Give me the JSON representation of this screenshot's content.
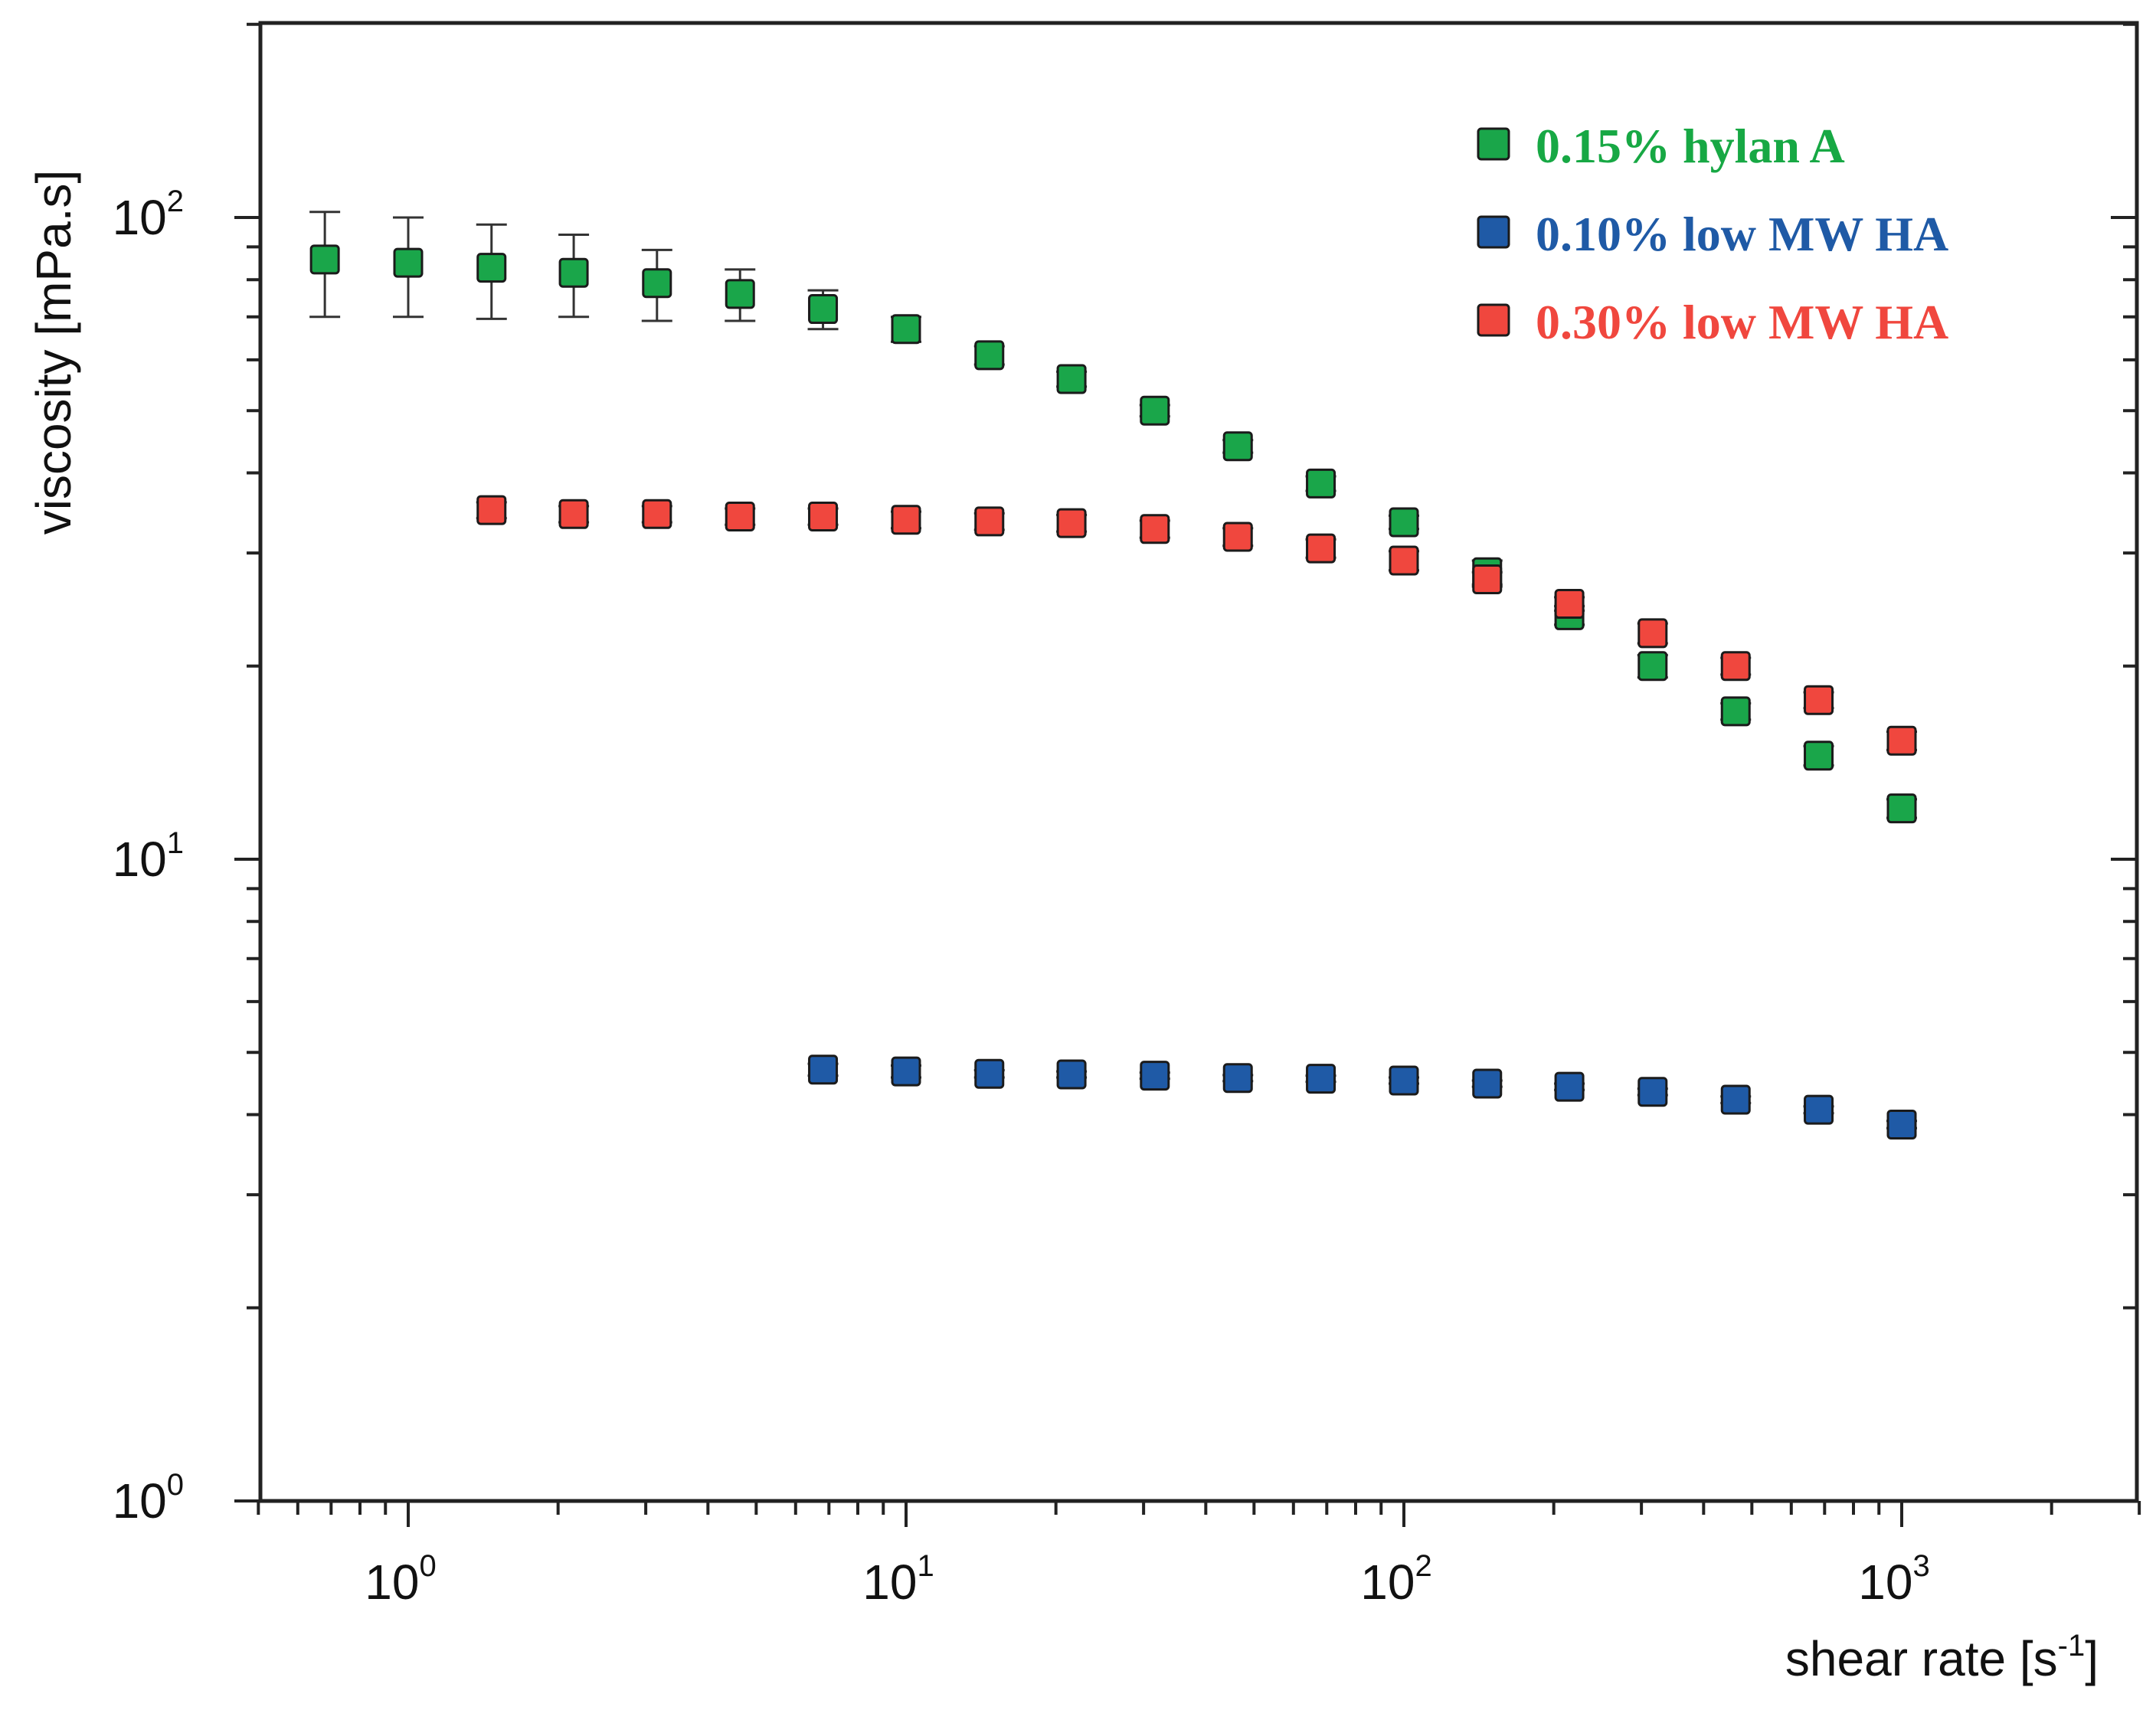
{
  "chart_data": {
    "type": "scatter",
    "x_scale": "log",
    "y_scale": "log",
    "xlabel": "shear rate [s",
    "xlabel_superscript": "-1",
    "xlabel_suffix": "]",
    "ylabel": "viscosity [mPa.s]",
    "xlim": [
      0.5,
      3500
    ],
    "ylim": [
      1,
      200
    ],
    "x_ticks": [
      {
        "value": 1,
        "base": "10",
        "exp": "0"
      },
      {
        "value": 10,
        "base": "10",
        "exp": "1"
      },
      {
        "value": 100,
        "base": "10",
        "exp": "2"
      },
      {
        "value": 1000,
        "base": "10",
        "exp": "3"
      }
    ],
    "y_ticks": [
      {
        "value": 1,
        "base": "10",
        "exp": "0"
      },
      {
        "value": 10,
        "base": "10",
        "exp": "1"
      },
      {
        "value": 100,
        "base": "10",
        "exp": "2"
      }
    ],
    "legend_position": "top-right",
    "series": [
      {
        "name": "0.15% hylan A",
        "color": "#1aa64a",
        "text_color": "#17a844",
        "points": [
          {
            "x": 0.68,
            "y": 86,
            "err": 16
          },
          {
            "x": 1.0,
            "y": 85,
            "err": 15
          },
          {
            "x": 1.47,
            "y": 83.5,
            "err": 14
          },
          {
            "x": 2.15,
            "y": 82,
            "err": 12
          },
          {
            "x": 3.16,
            "y": 79,
            "err": 10
          },
          {
            "x": 4.64,
            "y": 76,
            "err": 7
          },
          {
            "x": 6.81,
            "y": 72,
            "err": 5
          },
          {
            "x": 10.0,
            "y": 67,
            "err": 3
          },
          {
            "x": 14.7,
            "y": 61,
            "err": 2
          },
          {
            "x": 21.5,
            "y": 56,
            "err": 1.5
          },
          {
            "x": 31.6,
            "y": 50,
            "err": 1
          },
          {
            "x": 46.4,
            "y": 44,
            "err": 1
          },
          {
            "x": 68.1,
            "y": 38.5,
            "err": 1
          },
          {
            "x": 100,
            "y": 33.5,
            "err": 0.8
          },
          {
            "x": 147,
            "y": 28,
            "err": 1.2
          },
          {
            "x": 215,
            "y": 24,
            "err": 0.8
          },
          {
            "x": 316,
            "y": 20,
            "err": 0.8
          },
          {
            "x": 464,
            "y": 17,
            "err": 0.5
          },
          {
            "x": 681,
            "y": 14.5,
            "err": 0.5
          },
          {
            "x": 1000,
            "y": 12,
            "err": 0.4
          }
        ]
      },
      {
        "name": "0.10% low MW HA",
        "color": "#1f5aa6",
        "text_color": "#1f5aa6",
        "points": [
          {
            "x": 6.81,
            "y": 4.7,
            "err": 0.1
          },
          {
            "x": 10.0,
            "y": 4.67,
            "err": 0.1
          },
          {
            "x": 14.7,
            "y": 4.63,
            "err": 0.06
          },
          {
            "x": 21.5,
            "y": 4.62,
            "err": 0.05
          },
          {
            "x": 31.6,
            "y": 4.6,
            "err": 0.05
          },
          {
            "x": 46.4,
            "y": 4.56,
            "err": 0.05
          },
          {
            "x": 68.1,
            "y": 4.55,
            "err": 0.05
          },
          {
            "x": 100,
            "y": 4.52,
            "err": 0.05
          },
          {
            "x": 147,
            "y": 4.47,
            "err": 0.05
          },
          {
            "x": 215,
            "y": 4.42,
            "err": 0.05
          },
          {
            "x": 316,
            "y": 4.34,
            "err": 0.05
          },
          {
            "x": 464,
            "y": 4.22,
            "err": 0.05
          },
          {
            "x": 681,
            "y": 4.07,
            "err": 0.05
          },
          {
            "x": 1000,
            "y": 3.86,
            "err": 0.05
          }
        ]
      },
      {
        "name": "0.30% low MW HA",
        "color": "#f0473e",
        "text_color": "#f0473e",
        "points": [
          {
            "x": 1.47,
            "y": 35,
            "err": 1
          },
          {
            "x": 2.15,
            "y": 34.5,
            "err": 1
          },
          {
            "x": 3.16,
            "y": 34.5,
            "err": 1
          },
          {
            "x": 4.64,
            "y": 34.2,
            "err": 1
          },
          {
            "x": 6.81,
            "y": 34.2,
            "err": 1
          },
          {
            "x": 10.0,
            "y": 33.8,
            "err": 1
          },
          {
            "x": 14.7,
            "y": 33.6,
            "err": 1
          },
          {
            "x": 21.5,
            "y": 33.4,
            "err": 1
          },
          {
            "x": 31.6,
            "y": 32.7,
            "err": 1
          },
          {
            "x": 46.4,
            "y": 31.8,
            "err": 1
          },
          {
            "x": 68.1,
            "y": 30.5,
            "err": 1
          },
          {
            "x": 100,
            "y": 29.2,
            "err": 1
          },
          {
            "x": 147,
            "y": 27.3,
            "err": 0.7
          },
          {
            "x": 215,
            "y": 25,
            "err": 0.6
          },
          {
            "x": 316,
            "y": 22.5,
            "err": 0.8
          },
          {
            "x": 464,
            "y": 20,
            "err": 0.6
          },
          {
            "x": 681,
            "y": 17.7,
            "err": 0.5
          },
          {
            "x": 1000,
            "y": 15.3,
            "err": 0.5
          }
        ]
      }
    ]
  }
}
